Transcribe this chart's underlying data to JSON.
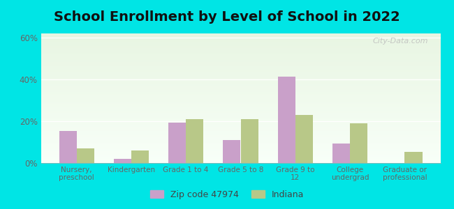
{
  "title": "School Enrollment by Level of School in 2022",
  "categories": [
    "Nursery,\npreschool",
    "Kindergarten",
    "Grade 1 to 4",
    "Grade 5 to 8",
    "Grade 9 to\n12",
    "College\nundergrad",
    "Graduate or\nprofessional"
  ],
  "zip_values": [
    15.5,
    2.0,
    19.5,
    11.0,
    41.5,
    9.5,
    0.0
  ],
  "indiana_values": [
    7.0,
    6.0,
    21.0,
    21.0,
    23.0,
    19.0,
    5.5
  ],
  "zip_color": "#c9a0c9",
  "indiana_color": "#b8c888",
  "background_outer": "#00e5e5",
  "grad_top": "#e8f5e2",
  "grad_bottom": "#f8fff8",
  "ylim": [
    0,
    62
  ],
  "yticks": [
    0,
    20,
    40,
    60
  ],
  "ytick_labels": [
    "0%",
    "20%",
    "40%",
    "60%"
  ],
  "legend_zip_label": "Zip code 47974",
  "legend_indiana_label": "Indiana",
  "title_fontsize": 14,
  "watermark": "City-Data.com"
}
